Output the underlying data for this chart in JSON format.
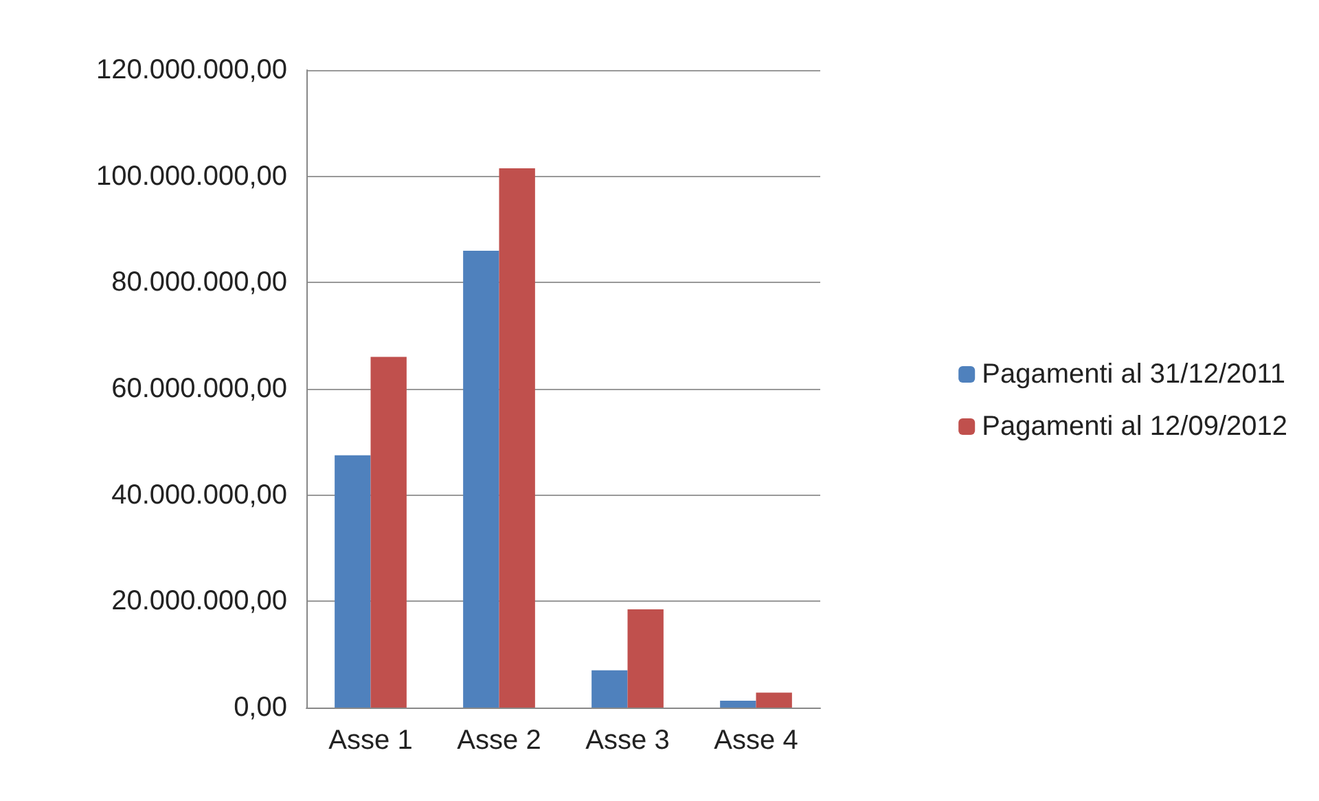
{
  "chart_data": {
    "type": "bar",
    "categories": [
      "Asse 1",
      "Asse 2",
      "Asse 3",
      "Asse 4"
    ],
    "series": [
      {
        "name": "Pagamenti al 31/12/2011",
        "color": "#4f81bd",
        "values": [
          47500000,
          86000000,
          7000000,
          1300000
        ]
      },
      {
        "name": "Pagamenti al 12/09/2012",
        "color": "#c0504d",
        "values": [
          66000000,
          101500000,
          18500000,
          2800000
        ]
      }
    ],
    "ylim": [
      0,
      120000000
    ],
    "yticks": [
      {
        "value": 0,
        "label": "0,00"
      },
      {
        "value": 20000000,
        "label": "20.000.000,00"
      },
      {
        "value": 40000000,
        "label": "40.000.000,00"
      },
      {
        "value": 60000000,
        "label": "60.000.000,00"
      },
      {
        "value": 80000000,
        "label": "80.000.000,00"
      },
      {
        "value": 100000000,
        "label": "100.000.000,00"
      },
      {
        "value": 120000000,
        "label": "120.000.000,00"
      }
    ],
    "grid": "y",
    "legend": "right"
  }
}
